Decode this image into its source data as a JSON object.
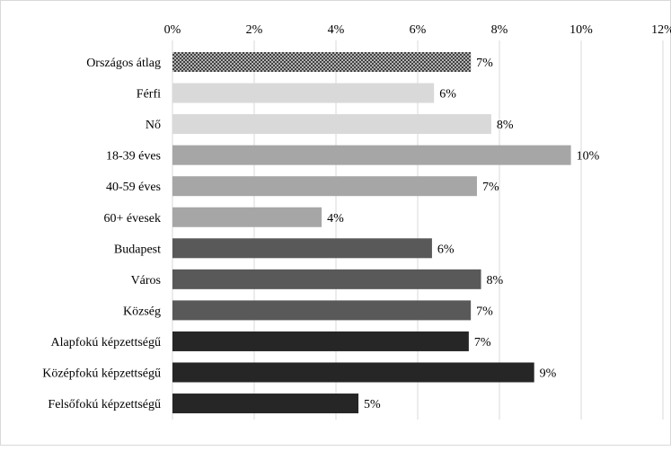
{
  "chart_data": {
    "type": "bar",
    "orientation": "horizontal",
    "categories": [
      "Országos átlag",
      "Férfi",
      "Nő",
      "18-39 éves",
      "40-59 éves",
      "60+ évesek",
      "Budapest",
      "Város",
      "Község",
      "Alapfokú képzettségű",
      "Középfokú képzettségű",
      "Felsőfokú képzettségű"
    ],
    "values": [
      7.3,
      6.4,
      7.8,
      9.75,
      7.45,
      3.65,
      6.35,
      7.55,
      7.3,
      7.25,
      8.85,
      4.55
    ],
    "value_labels": [
      "7%",
      "6%",
      "8%",
      "10%",
      "7%",
      "4%",
      "6%",
      "8%",
      "7%",
      "7%",
      "9%",
      "5%"
    ],
    "x_ticks": [
      "0%",
      "2%",
      "4%",
      "6%",
      "8%",
      "10%",
      "12%"
    ],
    "xlim": [
      0,
      12
    ],
    "x_axis_position": "top",
    "grid": "vertical",
    "bar_colors": [
      "pattern",
      "#d9d9d9",
      "#d9d9d9",
      "#a6a6a6",
      "#a6a6a6",
      "#a6a6a6",
      "#595959",
      "#595959",
      "#595959",
      "#262626",
      "#262626",
      "#262626"
    ],
    "title": "",
    "xlabel": "",
    "ylabel": ""
  }
}
